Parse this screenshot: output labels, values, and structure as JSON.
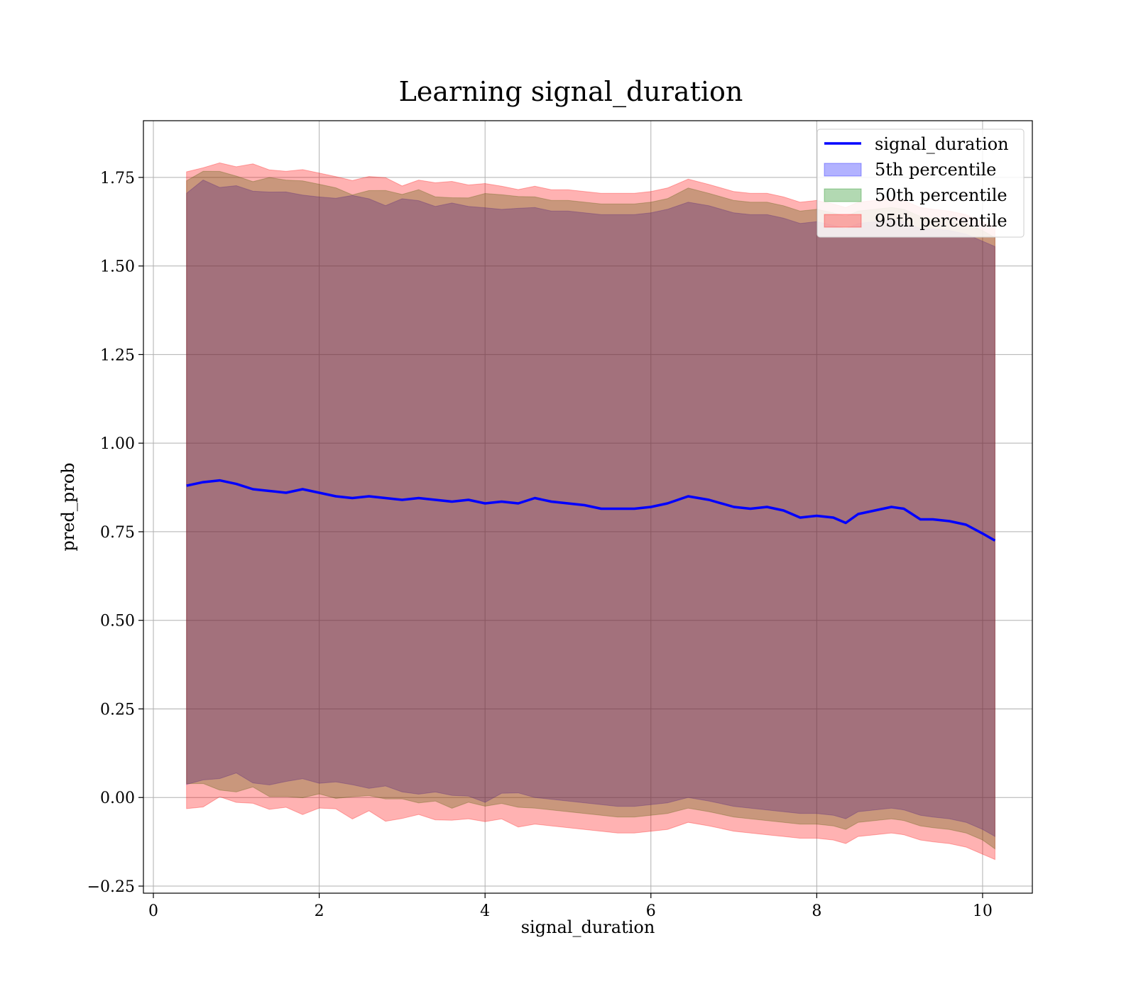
{
  "chart_data": {
    "type": "line",
    "title": "Learning signal_duration",
    "xlabel": "signal_duration",
    "ylabel": "pred_prob",
    "xlim": [
      -0.12,
      10.6
    ],
    "ylim": [
      -0.27,
      1.91
    ],
    "xticks": [
      0,
      2,
      4,
      6,
      8,
      10
    ],
    "yticks": [
      -0.25,
      0.0,
      0.25,
      0.5,
      0.75,
      1.0,
      1.25,
      1.5,
      1.75
    ],
    "xtick_labels": [
      "0",
      "2",
      "4",
      "6",
      "8",
      "10"
    ],
    "ytick_labels": [
      "−0.25",
      "0.00",
      "0.25",
      "0.50",
      "0.75",
      "1.00",
      "1.25",
      "1.50",
      "1.75"
    ],
    "grid": true,
    "legend_position": "top-right",
    "legend": [
      "signal_duration",
      "5th percentile",
      "50th percentile",
      "95th percentile"
    ],
    "x": [
      0.4,
      0.6,
      0.8,
      1.0,
      1.2,
      1.4,
      1.6,
      1.8,
      2.0,
      2.2,
      2.4,
      2.6,
      2.8,
      3.0,
      3.2,
      3.4,
      3.6,
      3.8,
      4.0,
      4.2,
      4.4,
      4.6,
      4.8,
      5.0,
      5.2,
      5.4,
      5.6,
      5.8,
      6.0,
      6.2,
      6.45,
      6.7,
      7.0,
      7.2,
      7.4,
      7.6,
      7.8,
      8.0,
      8.2,
      8.35,
      8.5,
      8.7,
      8.9,
      9.05,
      9.25,
      9.4,
      9.6,
      9.8,
      10.0,
      10.15
    ],
    "series": [
      {
        "name": "signal_duration",
        "kind": "line",
        "color": "#0000ff",
        "values": [
          0.88,
          0.89,
          0.895,
          0.885,
          0.87,
          0.865,
          0.86,
          0.87,
          0.86,
          0.85,
          0.845,
          0.85,
          0.845,
          0.84,
          0.845,
          0.84,
          0.835,
          0.84,
          0.83,
          0.835,
          0.83,
          0.845,
          0.835,
          0.83,
          0.825,
          0.815,
          0.815,
          0.815,
          0.82,
          0.83,
          0.85,
          0.84,
          0.82,
          0.815,
          0.82,
          0.81,
          0.79,
          0.795,
          0.79,
          0.775,
          0.8,
          0.81,
          0.82,
          0.815,
          0.785,
          0.785,
          0.78,
          0.77,
          0.745,
          0.725
        ]
      },
      {
        "name": "5th percentile",
        "kind": "band",
        "color": "#0000ff",
        "lower": [
          0.05,
          0.06,
          0.065,
          0.06,
          0.05,
          0.045,
          0.04,
          0.04,
          0.035,
          0.03,
          0.025,
          0.025,
          0.02,
          0.015,
          0.015,
          0.01,
          0.005,
          0.005,
          0.0,
          0.0,
          0.0,
          0.0,
          -0.005,
          -0.01,
          -0.015,
          -0.02,
          -0.025,
          -0.025,
          -0.02,
          -0.015,
          0.0,
          -0.01,
          -0.025,
          -0.03,
          -0.035,
          -0.04,
          -0.045,
          -0.045,
          -0.05,
          -0.06,
          -0.04,
          -0.035,
          -0.03,
          -0.035,
          -0.05,
          -0.055,
          -0.06,
          -0.07,
          -0.09,
          -0.11
        ],
        "upper": [
          1.72,
          1.73,
          1.735,
          1.725,
          1.715,
          1.71,
          1.705,
          1.71,
          1.7,
          1.69,
          1.685,
          1.68,
          1.68,
          1.675,
          1.675,
          1.67,
          1.665,
          1.67,
          1.66,
          1.665,
          1.655,
          1.665,
          1.655,
          1.655,
          1.65,
          1.645,
          1.645,
          1.645,
          1.65,
          1.66,
          1.68,
          1.67,
          1.65,
          1.645,
          1.645,
          1.635,
          1.62,
          1.625,
          1.615,
          1.605,
          1.62,
          1.625,
          1.63,
          1.625,
          1.605,
          1.605,
          1.6,
          1.59,
          1.57,
          1.555
        ]
      },
      {
        "name": "50th percentile",
        "kind": "band",
        "color": "#008000",
        "lower": [
          0.025,
          0.03,
          0.035,
          0.03,
          0.02,
          0.015,
          0.01,
          0.01,
          0.005,
          0.0,
          -0.005,
          -0.005,
          -0.01,
          -0.015,
          -0.015,
          -0.02,
          -0.025,
          -0.025,
          -0.03,
          -0.03,
          -0.03,
          -0.03,
          -0.035,
          -0.04,
          -0.045,
          -0.05,
          -0.055,
          -0.055,
          -0.05,
          -0.045,
          -0.03,
          -0.04,
          -0.055,
          -0.06,
          -0.065,
          -0.07,
          -0.075,
          -0.075,
          -0.08,
          -0.09,
          -0.07,
          -0.065,
          -0.06,
          -0.065,
          -0.08,
          -0.085,
          -0.09,
          -0.1,
          -0.12,
          -0.145
        ],
        "upper": [
          1.75,
          1.76,
          1.765,
          1.755,
          1.745,
          1.74,
          1.735,
          1.74,
          1.73,
          1.72,
          1.715,
          1.71,
          1.71,
          1.705,
          1.705,
          1.7,
          1.695,
          1.7,
          1.69,
          1.695,
          1.685,
          1.695,
          1.685,
          1.685,
          1.68,
          1.675,
          1.675,
          1.675,
          1.68,
          1.69,
          1.72,
          1.705,
          1.685,
          1.68,
          1.68,
          1.67,
          1.655,
          1.66,
          1.65,
          1.64,
          1.655,
          1.66,
          1.665,
          1.66,
          1.64,
          1.635,
          1.63,
          1.62,
          1.6,
          1.58
        ]
      },
      {
        "name": "95th percentile",
        "kind": "band",
        "color": "#ff0000",
        "lower": [
          -0.02,
          -0.015,
          -0.01,
          -0.015,
          -0.025,
          -0.03,
          -0.035,
          -0.035,
          -0.04,
          -0.045,
          -0.05,
          -0.05,
          -0.055,
          -0.06,
          -0.06,
          -0.065,
          -0.07,
          -0.07,
          -0.075,
          -0.075,
          -0.075,
          -0.075,
          -0.08,
          -0.085,
          -0.09,
          -0.095,
          -0.1,
          -0.1,
          -0.095,
          -0.09,
          -0.07,
          -0.08,
          -0.095,
          -0.1,
          -0.105,
          -0.11,
          -0.115,
          -0.115,
          -0.12,
          -0.13,
          -0.11,
          -0.105,
          -0.1,
          -0.105,
          -0.12,
          -0.125,
          -0.13,
          -0.14,
          -0.16,
          -0.175
        ],
        "upper": [
          1.78,
          1.79,
          1.795,
          1.785,
          1.775,
          1.77,
          1.765,
          1.77,
          1.76,
          1.75,
          1.745,
          1.74,
          1.74,
          1.735,
          1.735,
          1.73,
          1.725,
          1.73,
          1.72,
          1.725,
          1.715,
          1.725,
          1.715,
          1.715,
          1.71,
          1.705,
          1.705,
          1.705,
          1.71,
          1.72,
          1.745,
          1.73,
          1.71,
          1.705,
          1.705,
          1.695,
          1.68,
          1.685,
          1.675,
          1.665,
          1.68,
          1.685,
          1.69,
          1.685,
          1.665,
          1.66,
          1.655,
          1.645,
          1.625,
          1.61
        ]
      }
    ]
  }
}
